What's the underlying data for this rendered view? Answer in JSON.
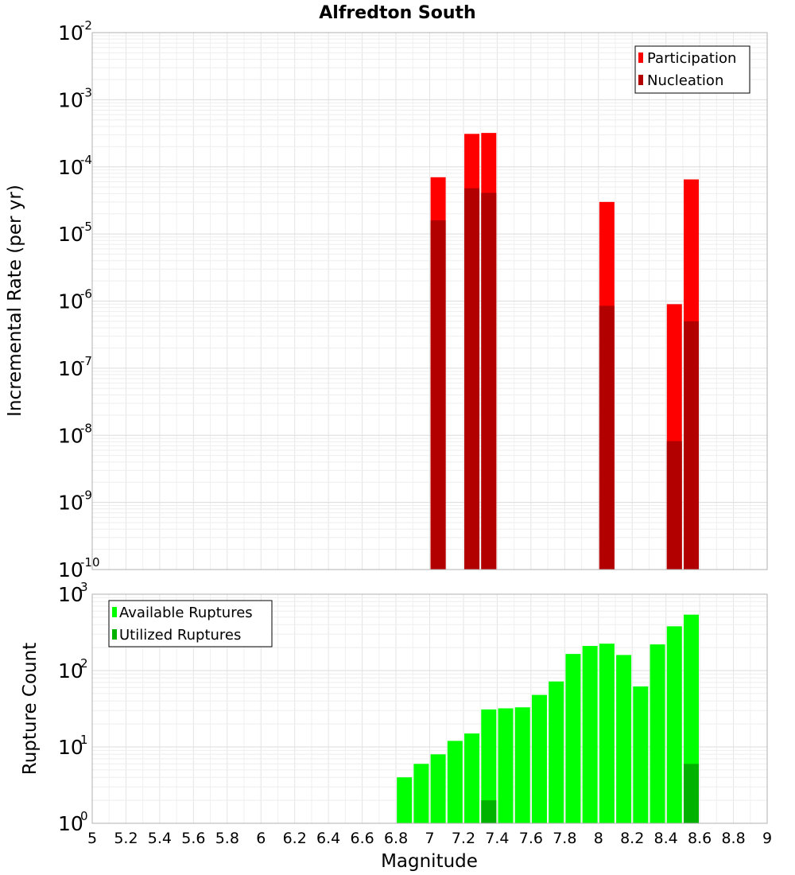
{
  "title": "Alfredton South",
  "chart_data": [
    {
      "type": "bar",
      "panel": "top",
      "ylabel": "Incremental Rate (per yr)",
      "yscale": "log",
      "ylim_exp": [
        -10,
        -2
      ],
      "xlim": [
        5,
        9
      ],
      "legend": {
        "placement": "top-right",
        "entries": [
          "Participation",
          "Nucleation"
        ]
      },
      "colors": {
        "Participation": "#ff0000",
        "Nucleation": "#b20000"
      },
      "x": [
        7.05,
        7.25,
        7.35,
        8.05,
        8.45,
        8.55
      ],
      "series": [
        {
          "name": "Participation",
          "values": [
            7e-05,
            0.00031,
            0.00032,
            3e-05,
            9e-07,
            6.5e-05
          ]
        },
        {
          "name": "Nucleation",
          "values": [
            1.6e-05,
            4.8e-05,
            4.1e-05,
            8.5e-07,
            8.2e-09,
            5e-07
          ]
        }
      ]
    },
    {
      "type": "bar",
      "panel": "bottom",
      "xlabel": "Magnitude",
      "ylabel": "Rupture Count",
      "yscale": "log",
      "ylim_exp": [
        0,
        3
      ],
      "xlim": [
        5,
        9
      ],
      "xticks": [
        "5",
        "5.2",
        "5.4",
        "5.6",
        "5.8",
        "6",
        "6.2",
        "6.4",
        "6.6",
        "6.8",
        "7",
        "7.2",
        "7.4",
        "7.6",
        "7.8",
        "8",
        "8.2",
        "8.4",
        "8.6",
        "8.8",
        "9"
      ],
      "legend": {
        "placement": "top-left",
        "entries": [
          "Available Ruptures",
          "Utilized Ruptures"
        ]
      },
      "colors": {
        "Available Ruptures": "#00ff00",
        "Utilized Ruptures": "#00b200"
      },
      "x": [
        6.45,
        6.65,
        6.85,
        6.95,
        7.05,
        7.15,
        7.25,
        7.35,
        7.45,
        7.55,
        7.65,
        7.75,
        7.85,
        7.95,
        8.05,
        8.15,
        8.25,
        8.35,
        8.45,
        8.55
      ],
      "series": [
        {
          "name": "Available Ruptures",
          "values": [
            1,
            1,
            4,
            6,
            8,
            12,
            15,
            31,
            32,
            33,
            48,
            72,
            165,
            210,
            225,
            160,
            62,
            220,
            380,
            540
          ]
        },
        {
          "name": "Utilized Ruptures",
          "values": [
            0,
            0,
            0,
            0,
            1,
            0,
            1,
            2,
            0,
            0,
            0,
            0,
            0,
            0,
            1,
            0,
            0,
            0,
            1,
            6
          ]
        }
      ]
    }
  ]
}
